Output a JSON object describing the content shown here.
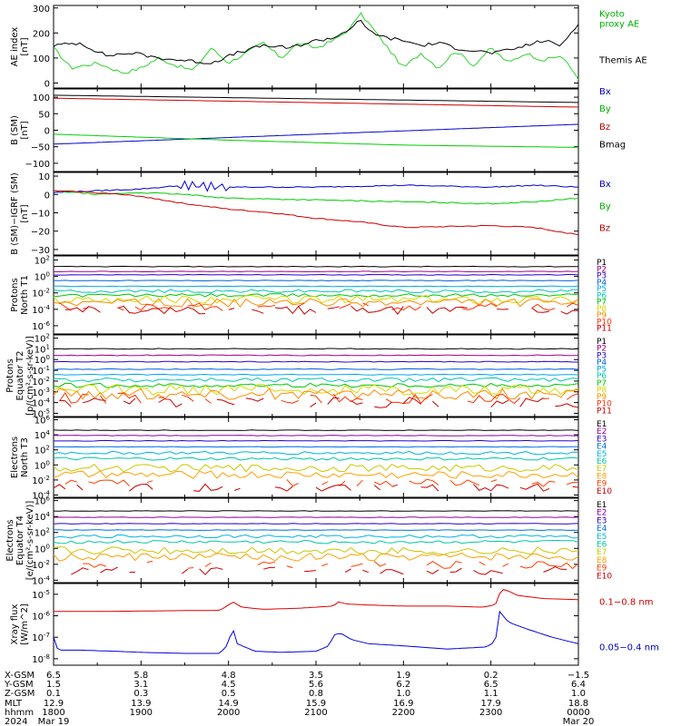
{
  "chart_data": [
    {
      "type": "line",
      "ylabel": "AE index\n[nT]",
      "ylim": [
        -20,
        310
      ],
      "yticks": [
        {
          "v": 300,
          "t": "300"
        },
        {
          "v": 200,
          "t": "200"
        },
        {
          "v": 100,
          "t": "100"
        },
        {
          "v": 0,
          "t": "0"
        }
      ],
      "legend": [
        {
          "text": "Kyoto\nproxy AE",
          "color": "#00b000",
          "ydata": 265
        },
        {
          "text": "Themis AE",
          "color": "#000000",
          "ydata": 80
        }
      ],
      "series": [
        {
          "name": "Kyoto proxy AE",
          "color": "#2fd12f",
          "x": [
            0,
            0.2,
            0.5,
            0.8,
            1.0,
            1.2,
            1.4,
            1.6,
            1.8,
            2.0,
            2.2,
            2.4,
            2.6,
            2.8,
            3.0,
            3.2,
            3.4,
            3.5,
            3.6,
            3.8,
            4.0,
            4.2,
            4.4,
            4.6,
            4.8,
            5.0,
            5.2,
            5.4,
            5.6,
            5.8,
            6.0
          ],
          "y": [
            140,
            60,
            80,
            40,
            60,
            100,
            70,
            50,
            140,
            80,
            120,
            160,
            100,
            160,
            140,
            170,
            220,
            280,
            240,
            150,
            60,
            120,
            60,
            130,
            70,
            140,
            80,
            120,
            90,
            110,
            20
          ]
        },
        {
          "name": "Themis AE",
          "color": "#000000",
          "x": [
            0,
            0.3,
            0.6,
            0.9,
            1.2,
            1.5,
            1.8,
            2.1,
            2.4,
            2.7,
            3.0,
            3.2,
            3.4,
            3.5,
            3.6,
            3.8,
            4.0,
            4.2,
            4.4,
            4.6,
            4.8,
            5.0,
            5.2,
            5.4,
            5.6,
            5.8,
            6.0
          ],
          "y": [
            150,
            160,
            110,
            120,
            100,
            90,
            80,
            120,
            150,
            140,
            170,
            180,
            220,
            250,
            210,
            180,
            170,
            150,
            160,
            140,
            130,
            120,
            130,
            150,
            170,
            150,
            240
          ]
        }
      ]
    },
    {
      "type": "line",
      "ylabel": "B (SM)\n[nT]",
      "ylim": [
        -125,
        125
      ],
      "yticks": [
        {
          "v": 100,
          "t": "100"
        },
        {
          "v": 50,
          "t": "50"
        },
        {
          "v": 0,
          "t": "0"
        },
        {
          "v": -50,
          "t": "−50"
        },
        {
          "v": -100,
          "t": "−100"
        }
      ],
      "legend": [
        {
          "text": "Bx",
          "color": "#0000c0",
          "ydata": 108
        },
        {
          "text": "By",
          "color": "#00b000",
          "ydata": 56
        },
        {
          "text": "Bz",
          "color": "#c00000",
          "ydata": 2
        },
        {
          "text": "Bmag",
          "color": "#000000",
          "ydata": -52
        }
      ],
      "series": [
        {
          "name": "Bmag",
          "color": "#000000",
          "x": [
            0,
            6
          ],
          "y": [
            106,
            84
          ]
        },
        {
          "name": "Bz",
          "color": "#cc0000",
          "x": [
            0,
            6
          ],
          "y": [
            97,
            70
          ]
        },
        {
          "name": "Bx",
          "color": "#0000cc",
          "x": [
            0,
            6
          ],
          "y": [
            -42,
            18
          ]
        },
        {
          "name": "By",
          "color": "#00cc00",
          "x": [
            0,
            2,
            4,
            6
          ],
          "y": [
            -12,
            -30,
            -45,
            -52
          ]
        }
      ]
    },
    {
      "type": "line",
      "ylabel": "B (SM)−IGRF (SM)\n[nT]",
      "ylim": [
        -33,
        12
      ],
      "yticks": [
        {
          "v": 10,
          "t": "10"
        },
        {
          "v": 0,
          "t": "0"
        },
        {
          "v": -10,
          "t": "−10"
        },
        {
          "v": -20,
          "t": "−20"
        },
        {
          "v": -30,
          "t": "−30"
        }
      ],
      "legend": [
        {
          "text": "Bx",
          "color": "#0000c0",
          "ydata": 4
        },
        {
          "text": "By",
          "color": "#00b000",
          "ydata": -8
        },
        {
          "text": "Bz",
          "color": "#c00000",
          "ydata": -20
        }
      ],
      "series": [
        {
          "name": "Bx",
          "color": "#0000cc",
          "x": [
            0,
            0.5,
            1.0,
            1.5,
            2.0,
            3.0,
            4.0,
            5.0,
            5.5,
            6.0
          ],
          "y": [
            1,
            2,
            3,
            5,
            4,
            4,
            5,
            4,
            5,
            4
          ]
        },
        {
          "name": "By",
          "color": "#00cc00",
          "x": [
            0,
            0.5,
            1.0,
            1.5,
            2.0,
            3.0,
            4.0,
            5.0,
            5.5,
            6.0
          ],
          "y": [
            2,
            0,
            1,
            0,
            -2,
            -3,
            -4,
            -5,
            -4,
            -2
          ]
        },
        {
          "name": "Bz",
          "color": "#cc0000",
          "x": [
            0,
            0.5,
            1.0,
            1.5,
            2.0,
            2.5,
            3.0,
            3.5,
            4.0,
            5.0,
            5.5,
            6.0
          ],
          "y": [
            2,
            1,
            -1,
            -5,
            -8,
            -10,
            -13,
            -15,
            -18,
            -17,
            -18,
            -22
          ]
        }
      ]
    },
    {
      "type": "line",
      "log": true,
      "ylabel": "Protons\nNorth T1",
      "ylim": [
        -7,
        2.5
      ],
      "yticks": [
        {
          "v": 2,
          "t": "10^2"
        },
        {
          "v": 0,
          "t": "10^0"
        },
        {
          "v": -2,
          "t": "10^-2"
        },
        {
          "v": -4,
          "t": "10^-4"
        },
        {
          "v": -6,
          "t": "10^-6"
        }
      ],
      "channels": [
        "P1",
        "P2",
        "P3",
        "P4",
        "P5",
        "P6",
        "P7",
        "P8",
        "P9",
        "P10",
        "P11"
      ],
      "levels": [
        1.2,
        0.6,
        0.2,
        -0.5,
        -1.2,
        -1.8,
        -2.3,
        -2.8,
        -3.2,
        -3.7,
        -4.1
      ]
    },
    {
      "type": "line",
      "log": true,
      "ylabel": "Protons\nEquator T2\n[p/(cm²-s-sr-keV)]",
      "ylim": [
        -5.3,
        2.3
      ],
      "yticks": [
        {
          "v": 2,
          "t": "10^2"
        },
        {
          "v": 1,
          "t": "10^1"
        },
        {
          "v": 0,
          "t": "10^0"
        },
        {
          "v": -1,
          "t": "10^-1"
        },
        {
          "v": -2,
          "t": "10^-2"
        },
        {
          "v": -3,
          "t": "10^-3"
        },
        {
          "v": -4,
          "t": "10^-4"
        },
        {
          "v": -5,
          "t": "10^-5"
        }
      ],
      "channels": [
        "P1",
        "P2",
        "P3",
        "P4",
        "P5",
        "P6",
        "P7",
        "P8",
        "P9",
        "P10",
        "P11"
      ],
      "levels": [
        1.0,
        0.4,
        -0.2,
        -0.9,
        -1.4,
        -1.9,
        -2.4,
        -2.8,
        -3.2,
        -3.6,
        -4.0
      ]
    },
    {
      "type": "line",
      "log": true,
      "ylabel": "Electrons\nNorth T3",
      "ylim": [
        -4.3,
        6.3
      ],
      "yticks": [
        {
          "v": 6,
          "t": "10^6"
        },
        {
          "v": 4,
          "t": "10^4"
        },
        {
          "v": 2,
          "t": "10^2"
        },
        {
          "v": 0,
          "t": "10^0"
        },
        {
          "v": -2,
          "t": "10^-2"
        },
        {
          "v": -4,
          "t": "10^-4"
        }
      ],
      "channels": [
        "E1",
        "E2",
        "E3",
        "E4",
        "E5",
        "E6",
        "E7",
        "E8",
        "E9",
        "E10"
      ],
      "levels": [
        4.6,
        3.9,
        3.2,
        2.4,
        1.6,
        0.8,
        -0.4,
        -1.3,
        -2.4,
        -3.0
      ]
    },
    {
      "type": "line",
      "log": true,
      "ylabel": "Electrons\nEquator T4\n[e/(cm²-s-sr-keV)]",
      "ylim": [
        -4.3,
        6.3
      ],
      "yticks": [
        {
          "v": 6,
          "t": "10^6"
        },
        {
          "v": 4,
          "t": "10^4"
        },
        {
          "v": 2,
          "t": "10^2"
        },
        {
          "v": 0,
          "t": "10^0"
        },
        {
          "v": -2,
          "t": "10^-2"
        },
        {
          "v": -4,
          "t": "10^-4"
        }
      ],
      "channels": [
        "E1",
        "E2",
        "E3",
        "E4",
        "E5",
        "E6",
        "E7",
        "E8",
        "E9",
        "E10"
      ],
      "levels": [
        4.7,
        3.9,
        3.1,
        2.3,
        1.5,
        0.8,
        -0.3,
        -1.1,
        -2.1,
        -2.8
      ]
    },
    {
      "type": "line",
      "log": true,
      "ylabel": "Xray flux\n[W/m^2]",
      "ylim": [
        -8.3,
        -4.5
      ],
      "yticks": [
        {
          "v": -5,
          "t": "10^-5"
        },
        {
          "v": -6,
          "t": "10^-6"
        },
        {
          "v": -7,
          "t": "10^-7"
        },
        {
          "v": -8,
          "t": "10^-8"
        }
      ],
      "legend": [
        {
          "text": "0.1−0.8 nm",
          "color": "#cc0000",
          "ydata": -5.5
        },
        {
          "text": "0.05−0.4 nm",
          "color": "#0000cc",
          "ydata": -7.6
        }
      ],
      "series": [
        {
          "name": "0.1−0.8 nm",
          "color": "#dd0000",
          "x": [
            0,
            0.5,
            1.0,
            1.5,
            1.9,
            2.0,
            2.05,
            2.15,
            2.4,
            2.8,
            3.0,
            3.2,
            3.25,
            3.35,
            3.6,
            4.0,
            4.5,
            4.9,
            5.05,
            5.12,
            5.2,
            5.3,
            5.6,
            6.0
          ],
          "y": [
            -5.8,
            -5.8,
            -5.78,
            -5.76,
            -5.75,
            -5.5,
            -5.35,
            -5.6,
            -5.7,
            -5.65,
            -5.6,
            -5.55,
            -5.35,
            -5.45,
            -5.5,
            -5.55,
            -5.55,
            -5.6,
            -5.5,
            -4.75,
            -4.85,
            -5.05,
            -5.2,
            -5.25
          ]
        },
        {
          "name": "0.05−0.4 nm",
          "color": "#0000dd",
          "x": [
            0,
            0.05,
            0.3,
            0.7,
            1.0,
            1.5,
            1.9,
            1.98,
            2.05,
            2.1,
            2.3,
            2.6,
            3.0,
            3.15,
            3.2,
            3.28,
            3.4,
            3.6,
            4.0,
            4.5,
            4.95,
            5.05,
            5.1,
            5.2,
            5.4,
            5.7,
            6.0
          ],
          "y": [
            -7.0,
            -7.6,
            -7.6,
            -7.65,
            -7.7,
            -7.75,
            -7.75,
            -7.4,
            -6.6,
            -7.3,
            -7.65,
            -7.7,
            -7.65,
            -7.4,
            -6.9,
            -6.8,
            -7.1,
            -7.3,
            -7.4,
            -7.55,
            -7.45,
            -7.2,
            -5.8,
            -6.3,
            -6.6,
            -7.0,
            -7.3
          ]
        }
      ]
    }
  ],
  "x_axis": {
    "row_labels": [
      "X-GSM",
      "Y-GSM",
      "Z-GSM",
      "MLT",
      "hhmm",
      "2024"
    ],
    "columns": [
      [
        "6.5",
        "1.5",
        "0.1",
        "12.9",
        "1800",
        "Mar 19"
      ],
      [
        "5.8",
        "3.1",
        "0.3",
        "13.9",
        "1900",
        ""
      ],
      [
        "4.8",
        "4.5",
        "0.5",
        "14.9",
        "2000",
        ""
      ],
      [
        "3.5",
        "5.6",
        "0.8",
        "15.9",
        "2100",
        ""
      ],
      [
        "1.9",
        "6.2",
        "1.0",
        "16.9",
        "2200",
        ""
      ],
      [
        "0.2",
        "6.5",
        "1.1",
        "17.9",
        "2300",
        ""
      ],
      [
        "−1.5",
        "6.4",
        "1.0",
        "18.8",
        "0000",
        "Mar 20"
      ]
    ]
  },
  "colors": {
    "P": [
      "#000000",
      "#a0008c",
      "#2a00c8",
      "#0060e0",
      "#00a8e8",
      "#00c8b4",
      "#00c800",
      "#d8d800",
      "#ff8c00",
      "#ff3000",
      "#c80000"
    ],
    "E": [
      "#000000",
      "#9000a0",
      "#2a00c8",
      "#0070e0",
      "#00b4e0",
      "#00c8a0",
      "#c8c800",
      "#ffa000",
      "#ff4000",
      "#c80000"
    ]
  }
}
